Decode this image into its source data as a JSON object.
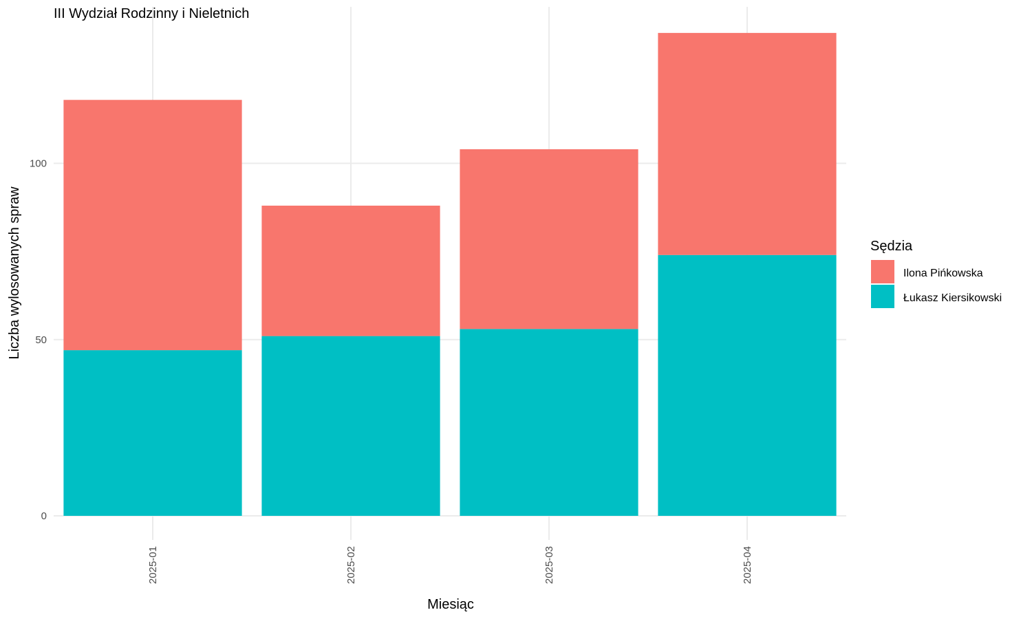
{
  "chart_data": {
    "type": "bar",
    "stacked": true,
    "title": "III Wydział Rodzinny i Nieletnich",
    "xlabel": "Miesiąc",
    "ylabel": "Liczba wylosowanych spraw",
    "categories": [
      "2025-01",
      "2025-02",
      "2025-03",
      "2025-04"
    ],
    "series": [
      {
        "name": "Łukasz Kiersikowski",
        "values": [
          47,
          51,
          53,
          74
        ],
        "color": "#00BFC4"
      },
      {
        "name": "Ilona Pińkowska",
        "values": [
          71,
          37,
          51,
          63
        ],
        "color": "#F8766D"
      }
    ],
    "ylim": [
      0,
      137
    ],
    "yticks": [
      0,
      50,
      100
    ],
    "grid": true,
    "legend": {
      "title": "Sędzia",
      "position": "right",
      "entries": [
        {
          "label": "Ilona Pińkowska",
          "color": "#F8766D"
        },
        {
          "label": "Łukasz Kiersikowski",
          "color": "#00BFC4"
        }
      ]
    }
  }
}
